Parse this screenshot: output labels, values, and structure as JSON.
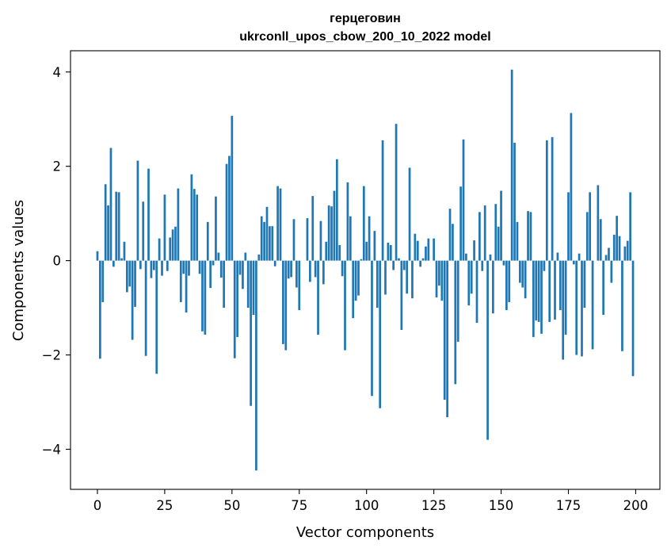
{
  "chart_data": {
    "type": "bar",
    "title": "герцеговин",
    "subtitle": "ukrconll_upos_cbow_200_10_2022 model",
    "xlabel": "Vector components",
    "ylabel": "Components values",
    "xlim": [
      -10,
      209
    ],
    "ylim": [
      -4.85,
      4.45
    ],
    "xticks": [
      0,
      25,
      50,
      75,
      100,
      125,
      150,
      175,
      200
    ],
    "yticks": [
      -4,
      -2,
      0,
      2,
      4
    ],
    "ytick_labels": [
      "−4",
      "−2",
      "0",
      "2",
      "4"
    ],
    "bar_color": "#1f77b4",
    "grid": false,
    "values": [
      0.2,
      -2.08,
      -0.88,
      1.62,
      1.17,
      2.39,
      -0.13,
      1.46,
      1.45,
      0.05,
      0.4,
      -0.67,
      -0.55,
      -1.68,
      -0.98,
      2.12,
      -0.18,
      1.25,
      -2.02,
      1.95,
      -0.37,
      -0.2,
      -2.4,
      0.47,
      -0.32,
      1.4,
      -0.22,
      0.49,
      0.66,
      0.72,
      1.53,
      -0.88,
      -0.28,
      -1.1,
      -0.32,
      1.83,
      1.52,
      1.4,
      -0.28,
      -1.5,
      -1.57,
      0.82,
      -0.58,
      -0.1,
      1.36,
      0.17,
      -0.36,
      -1.0,
      2.05,
      2.22,
      3.07,
      -2.07,
      -1.62,
      -0.3,
      -0.6,
      0.17,
      -1.0,
      -3.08,
      -1.15,
      -4.45,
      0.13,
      0.94,
      0.82,
      1.14,
      0.73,
      0.73,
      -0.12,
      1.58,
      1.53,
      -1.77,
      -1.9,
      -0.38,
      -0.35,
      0.88,
      -0.57,
      -1.05,
      0.0,
      0.0,
      0.9,
      -0.45,
      1.37,
      -0.35,
      -1.57,
      0.84,
      -0.5,
      0.4,
      1.17,
      1.15,
      1.48,
      2.15,
      0.33,
      -0.33,
      -1.9,
      1.66,
      0.94,
      -1.22,
      -0.85,
      -0.74,
      0.03,
      1.58,
      0.4,
      0.94,
      -2.87,
      0.63,
      -1.0,
      -3.13,
      2.55,
      -0.72,
      0.38,
      0.33,
      -0.2,
      2.9,
      0.05,
      -1.47,
      -0.2,
      -0.7,
      1.97,
      -0.8,
      0.57,
      0.42,
      -0.13,
      0.05,
      0.3,
      0.47,
      0.0,
      0.47,
      -0.78,
      -0.53,
      -0.85,
      -2.95,
      -3.32,
      1.1,
      0.78,
      -2.62,
      -1.72,
      1.57,
      2.57,
      0.15,
      -0.95,
      -0.7,
      0.43,
      -1.32,
      1.03,
      -0.22,
      1.17,
      -3.8,
      0.13,
      -1.12,
      1.2,
      0.72,
      1.48,
      -0.1,
      -1.05,
      -0.88,
      4.05,
      2.5,
      0.82,
      -0.47,
      -0.57,
      -0.8,
      1.05,
      1.03,
      -1.62,
      -1.27,
      -1.3,
      -1.55,
      -0.22,
      2.55,
      -1.3,
      2.62,
      -1.25,
      0.17,
      -1.05,
      -2.1,
      -1.57,
      1.45,
      3.13,
      -0.08,
      -2.0,
      0.15,
      -2.03,
      -1.0,
      1.03,
      1.45,
      -1.88,
      0.0,
      1.6,
      0.88,
      -1.15,
      0.12,
      0.27,
      -0.47,
      0.55,
      0.95,
      0.52,
      -1.92,
      0.3,
      0.42,
      1.45,
      -2.45
    ]
  }
}
